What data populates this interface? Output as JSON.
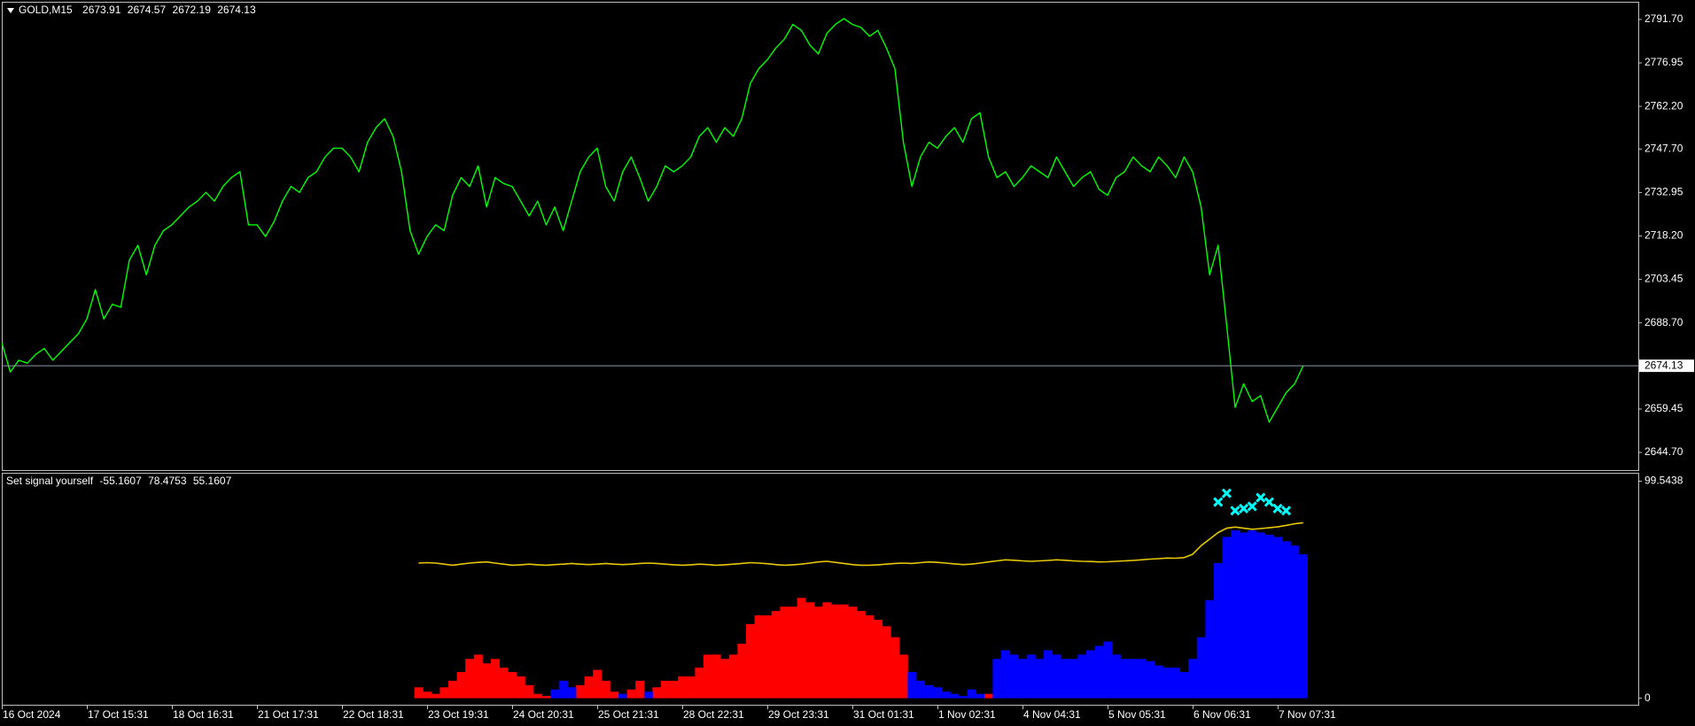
{
  "chart_data": [
    {
      "type": "line",
      "symbol": "GOLD,M15",
      "ohlc": [
        2673.91,
        2674.57,
        2672.19,
        2674.13
      ],
      "current_price": 2674.13,
      "series": [
        {
          "color": "#00ff00",
          "values": [
            2682,
            2672,
            2676,
            2675,
            2678,
            2680,
            2676,
            2679,
            2682,
            2685,
            2690,
            2700,
            2690,
            2695,
            2694,
            2710,
            2715,
            2705,
            2715,
            2720,
            2722,
            2725,
            2728,
            2730,
            2733,
            2730,
            2735,
            2738,
            2740,
            2722,
            2722,
            2718,
            2723,
            2730,
            2735,
            2733,
            2738,
            2740,
            2745,
            2748,
            2748,
            2745,
            2740,
            2750,
            2755,
            2758,
            2752,
            2740,
            2720,
            2712,
            2718,
            2722,
            2720,
            2732,
            2738,
            2735,
            2742,
            2728,
            2738,
            2736,
            2735,
            2730,
            2725,
            2730,
            2722,
            2728,
            2720,
            2730,
            2740,
            2745,
            2748,
            2735,
            2730,
            2740,
            2745,
            2738,
            2730,
            2735,
            2742,
            2740,
            2742,
            2745,
            2752,
            2755,
            2750,
            2755,
            2752,
            2758,
            2770,
            2775,
            2778,
            2782,
            2785,
            2790,
            2788,
            2783,
            2780,
            2787,
            2790,
            2792,
            2790,
            2789,
            2786,
            2788,
            2782,
            2775,
            2750,
            2735,
            2745,
            2750,
            2748,
            2752,
            2755,
            2750,
            2758,
            2760,
            2745,
            2738,
            2740,
            2735,
            2738,
            2742,
            2740,
            2738,
            2745,
            2740,
            2735,
            2738,
            2740,
            2734,
            2732,
            2738,
            2740,
            2745,
            2742,
            2740,
            2745,
            2742,
            2738,
            2745,
            2740,
            2728,
            2705,
            2715,
            2688,
            2660,
            2668,
            2662,
            2664,
            2655,
            2660,
            2665,
            2668,
            2674.13
          ]
        }
      ],
      "xlim": [
        0,
        192.4
      ],
      "ylim": [
        2638.7,
        2797.4
      ],
      "yticks": [
        {
          "value": 2791.7,
          "label": "2791.70"
        },
        2776.95,
        {
          "value": 2762.2,
          "label": "2762.20"
        },
        {
          "value": 2747.7,
          "label": "2747.70"
        },
        2732.95,
        {
          "value": 2718.2,
          "label": "2718.20"
        },
        2703.45,
        {
          "value": 2688.7,
          "label": "2688.70"
        },
        2659.45,
        {
          "value": 2644.7,
          "label": "2644.70"
        }
      ],
      "grid": false
    },
    {
      "type": "bar",
      "title": "Set signal yourself",
      "title_values": [
        -55.1607,
        78.4753,
        55.1607
      ],
      "series": [
        {
          "type": "bar",
          "color": "#ff0000",
          "values": [
            null,
            null,
            null,
            null,
            null,
            null,
            null,
            null,
            null,
            null,
            null,
            null,
            null,
            null,
            null,
            null,
            null,
            null,
            null,
            null,
            null,
            null,
            null,
            null,
            null,
            null,
            null,
            null,
            null,
            null,
            null,
            null,
            null,
            null,
            null,
            null,
            null,
            null,
            null,
            null,
            null,
            null,
            null,
            null,
            null,
            null,
            null,
            null,
            null,
            5,
            3,
            2,
            5,
            8,
            12,
            18,
            20,
            16,
            18,
            14,
            12,
            10,
            6,
            2,
            1,
            null,
            null,
            null,
            6,
            10,
            13,
            8,
            3,
            null,
            4,
            8,
            null,
            5,
            8,
            8,
            10,
            10,
            14,
            20,
            20,
            18,
            20,
            25,
            34,
            38,
            38,
            40,
            42,
            42,
            46,
            44,
            42,
            44,
            43,
            43,
            42,
            40,
            38,
            36,
            33,
            28,
            20,
            null,
            null,
            null,
            null,
            null,
            null,
            null,
            null,
            null,
            2,
            null,
            null,
            null,
            null,
            null,
            null,
            null,
            null,
            null,
            null,
            null,
            null,
            null,
            null,
            null,
            null,
            null,
            null,
            null,
            null,
            null,
            null,
            null,
            null,
            null,
            null,
            null,
            null,
            null,
            null,
            null,
            null,
            null,
            null,
            null,
            null,
            null
          ]
        },
        {
          "type": "bar",
          "color": "#0000ff",
          "values": [
            null,
            null,
            null,
            null,
            null,
            null,
            null,
            null,
            null,
            null,
            null,
            null,
            null,
            null,
            null,
            null,
            null,
            null,
            null,
            null,
            null,
            null,
            null,
            null,
            null,
            null,
            null,
            null,
            null,
            null,
            null,
            null,
            null,
            null,
            null,
            null,
            null,
            null,
            null,
            null,
            null,
            null,
            null,
            null,
            null,
            null,
            null,
            null,
            null,
            null,
            null,
            null,
            null,
            null,
            null,
            null,
            null,
            null,
            null,
            null,
            null,
            null,
            null,
            null,
            null,
            4,
            8,
            5,
            null,
            null,
            null,
            null,
            null,
            2,
            null,
            null,
            3,
            null,
            null,
            null,
            null,
            null,
            null,
            null,
            null,
            null,
            null,
            null,
            null,
            null,
            null,
            null,
            null,
            null,
            null,
            null,
            null,
            null,
            null,
            null,
            null,
            null,
            null,
            null,
            null,
            null,
            null,
            12,
            8,
            6,
            5,
            3,
            2,
            1,
            4,
            2,
            null,
            18,
            22,
            20,
            18,
            20,
            18,
            22,
            20,
            18,
            18,
            20,
            22,
            24,
            26,
            20,
            18,
            18,
            18,
            17,
            15,
            14,
            14,
            12,
            18,
            28,
            45,
            62,
            74,
            77,
            76,
            77,
            76,
            75,
            74,
            72,
            70,
            66
          ]
        },
        {
          "type": "line",
          "color": "#e8c800",
          "values": [
            null,
            null,
            null,
            null,
            null,
            null,
            null,
            null,
            null,
            null,
            null,
            null,
            null,
            null,
            null,
            null,
            null,
            null,
            null,
            null,
            null,
            null,
            null,
            null,
            null,
            null,
            null,
            null,
            null,
            null,
            null,
            null,
            null,
            null,
            null,
            null,
            null,
            null,
            null,
            null,
            null,
            null,
            null,
            null,
            null,
            null,
            null,
            null,
            null,
            62,
            62.2,
            62,
            61.5,
            61,
            61.5,
            62,
            62.3,
            62.5,
            62,
            61.5,
            61,
            61.2,
            61.5,
            61.2,
            61,
            61.3,
            61.5,
            61.8,
            61.5,
            61.3,
            61.5,
            61.8,
            61.5,
            61.3,
            61.5,
            61.8,
            62,
            61.8,
            61.5,
            61.2,
            61,
            61.2,
            61.5,
            61.3,
            61,
            61.2,
            61.5,
            61.8,
            62.2,
            62,
            61.7,
            61.3,
            61,
            61.2,
            61.5,
            62,
            62.5,
            62.8,
            62.3,
            61.8,
            61.3,
            61,
            61,
            61.2,
            61.5,
            61.8,
            62,
            61.8,
            62.2,
            62.5,
            62.3,
            62,
            61.6,
            61.3,
            61.5,
            62,
            62.5,
            63,
            63.5,
            63.3,
            63,
            62.8,
            63,
            63.2,
            63.5,
            63.3,
            63,
            62.8,
            62.7,
            62.5,
            62.6,
            62.8,
            63,
            63.2,
            63.5,
            63.8,
            64,
            64.3,
            64.2,
            64.5,
            66,
            70,
            73,
            76,
            78,
            78.5,
            78,
            77.5,
            77.8,
            78.2,
            78.6,
            79.3,
            80,
            80.5
          ]
        },
        {
          "type": "scatter",
          "color": "#00ffff",
          "values": [
            null,
            null,
            null,
            null,
            null,
            null,
            null,
            null,
            null,
            null,
            null,
            null,
            null,
            null,
            null,
            null,
            null,
            null,
            null,
            null,
            null,
            null,
            null,
            null,
            null,
            null,
            null,
            null,
            null,
            null,
            null,
            null,
            null,
            null,
            null,
            null,
            null,
            null,
            null,
            null,
            null,
            null,
            null,
            null,
            null,
            null,
            null,
            null,
            null,
            null,
            null,
            null,
            null,
            null,
            null,
            null,
            null,
            null,
            null,
            null,
            null,
            null,
            null,
            null,
            null,
            null,
            null,
            null,
            null,
            null,
            null,
            null,
            null,
            null,
            null,
            null,
            null,
            null,
            null,
            null,
            null,
            null,
            null,
            null,
            null,
            null,
            null,
            null,
            null,
            null,
            null,
            null,
            null,
            null,
            null,
            null,
            null,
            null,
            null,
            null,
            null,
            null,
            null,
            null,
            null,
            null,
            null,
            null,
            null,
            null,
            null,
            null,
            null,
            null,
            null,
            null,
            null,
            null,
            null,
            null,
            null,
            null,
            null,
            null,
            null,
            null,
            null,
            null,
            null,
            null,
            null,
            null,
            null,
            null,
            null,
            null,
            null,
            null,
            null,
            null,
            null,
            null,
            null,
            90,
            94,
            86,
            87,
            88,
            92,
            90,
            87,
            86,
            null,
            null
          ]
        }
      ],
      "xlim": [
        0,
        192.4
      ],
      "ylim": [
        -3,
        103
      ],
      "yticks": [
        99.5438,
        0
      ],
      "xticks": [
        {
          "value": 0,
          "label": "16 Oct 2024"
        },
        {
          "value": 10,
          "label": "17 Oct 15:31"
        },
        {
          "value": 20,
          "label": "18 Oct 16:31"
        },
        {
          "value": 30,
          "label": "21 Oct 17:31"
        },
        {
          "value": 40,
          "label": "22 Oct 18:31"
        },
        {
          "value": 50,
          "label": "23 Oct 19:31"
        },
        {
          "value": 60,
          "label": "24 Oct 20:31"
        },
        {
          "value": 70,
          "label": "25 Oct 21:31"
        },
        {
          "value": 80,
          "label": "28 Oct 22:31"
        },
        {
          "value": 90,
          "label": "29 Oct 23:31"
        },
        {
          "value": 100,
          "label": "31 Oct 01:31"
        },
        {
          "value": 110,
          "label": "1 Nov 02:31"
        },
        {
          "value": 120,
          "label": "4 Nov 04:31"
        },
        {
          "value": 130,
          "label": "5 Nov 05:31"
        },
        {
          "value": 140,
          "label": "6 Nov 06:31"
        },
        {
          "value": 150,
          "label": "7 Nov 07:31"
        }
      ],
      "grid": false
    }
  ]
}
